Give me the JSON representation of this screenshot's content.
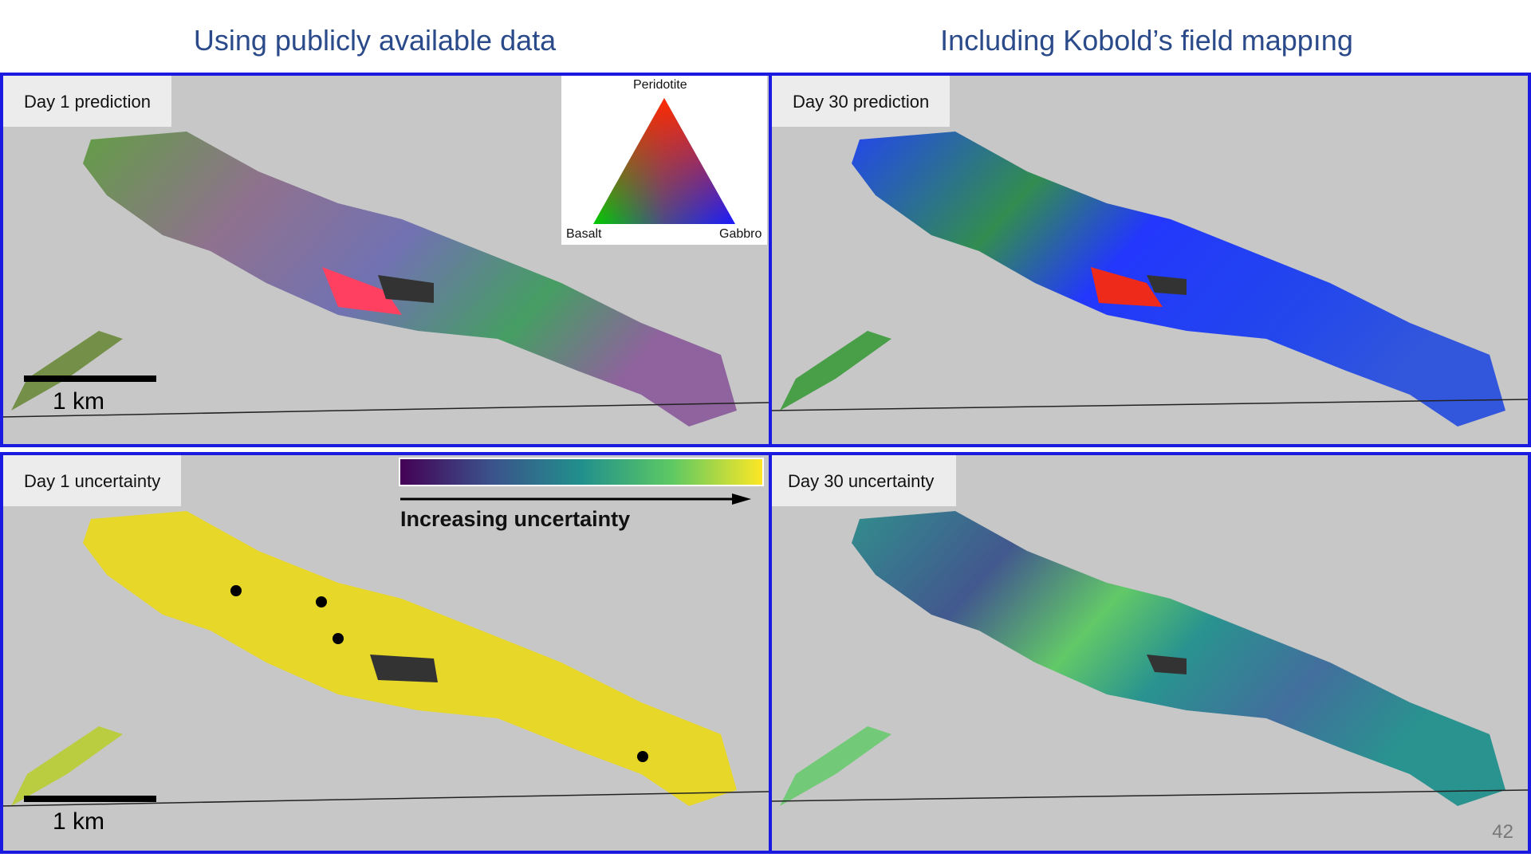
{
  "titles": {
    "left": "Using publicly available data",
    "right": "Including Kobold’s field mappıng"
  },
  "panels": {
    "top_left": {
      "label": "Day 1 prediction",
      "scale_text": "1 km"
    },
    "top_right": {
      "label": "Day 30 prediction"
    },
    "bottom_left": {
      "label": "Day 1 uncertainty",
      "scale_text": "1 km"
    },
    "bottom_right": {
      "label": "Day 30 uncertainty"
    }
  },
  "ternary_legend": {
    "top": "Peridotite",
    "left": "Basalt",
    "right": "Gabbro",
    "colors": {
      "top": "#ff2a00",
      "left": "#00cc00",
      "right": "#1a1aff"
    }
  },
  "uncertainty_legend": {
    "label": "Increasing uncertainty",
    "colors": [
      "#440154",
      "#3b528b",
      "#21908c",
      "#5dc963",
      "#fde725"
    ]
  },
  "page_number": "42",
  "colors": {
    "panel_border": "#1a1ae0",
    "title": "#2a4a8a",
    "terrain": "#c7c7c7"
  }
}
